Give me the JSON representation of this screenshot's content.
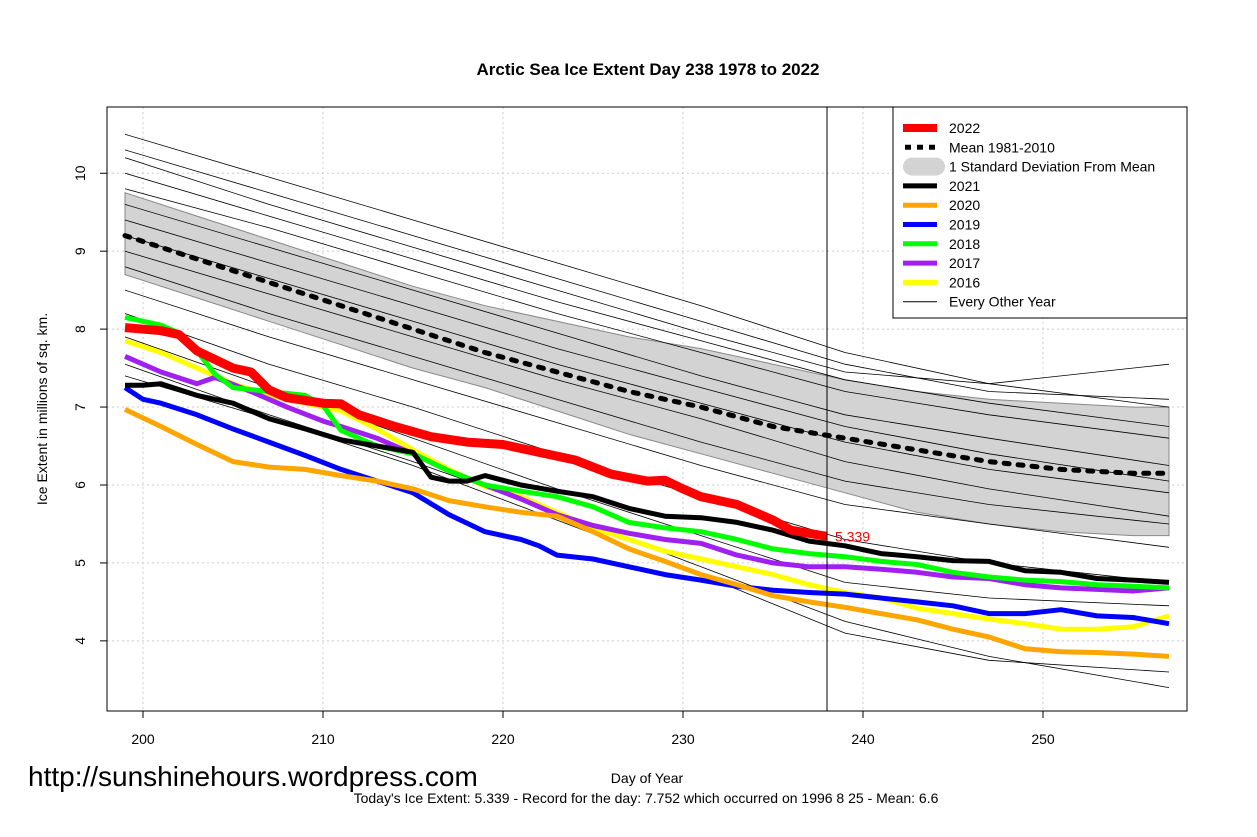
{
  "chart_data": {
    "type": "line",
    "title": "Arctic Sea Ice Extent Day 238 1978 to 2022",
    "xlabel": "Day of Year",
    "ylabel": "Ice Extent in millions of sq. km.",
    "xlim": [
      198,
      258
    ],
    "ylim": [
      3.1,
      10.85
    ],
    "xticks": [
      200,
      210,
      220,
      230,
      240,
      250
    ],
    "yticks": [
      4,
      5,
      6,
      7,
      8,
      9,
      10
    ],
    "grid": true,
    "legend_position": "top-right",
    "current_day": 238,
    "current_value_label": "5.339",
    "watermark": "http://sunshinehours.wordpress.com",
    "footer": "Today's Ice Extent: 5.339  - Record for the day: 7.752 which occurred on 1996 8 25  - Mean: 6.6",
    "legend": [
      {
        "label": "2022",
        "color": "#ff0000",
        "style": "thick"
      },
      {
        "label": "Mean 1981-2010",
        "color": "#000000",
        "style": "dotted"
      },
      {
        "label": "1 Standard Deviation From Mean",
        "color": "#d3d3d3",
        "style": "band"
      },
      {
        "label": "2021",
        "color": "#000000",
        "style": "line"
      },
      {
        "label": "2020",
        "color": "#ffa500",
        "style": "line"
      },
      {
        "label": "2019",
        "color": "#0000ff",
        "style": "line"
      },
      {
        "label": "2018",
        "color": "#00ff00",
        "style": "line"
      },
      {
        "label": "2017",
        "color": "#a020f0",
        "style": "line"
      },
      {
        "label": "2016",
        "color": "#ffff00",
        "style": "line"
      },
      {
        "label": "Every Other Year",
        "color": "#000000",
        "style": "thin"
      }
    ],
    "band": {
      "x": [
        199,
        203,
        207,
        211,
        215,
        219,
        223,
        227,
        231,
        235,
        239,
        243,
        247,
        251,
        255,
        257
      ],
      "upper": [
        9.75,
        9.45,
        9.15,
        8.85,
        8.55,
        8.3,
        8.1,
        7.9,
        7.75,
        7.55,
        7.35,
        7.2,
        7.1,
        7.05,
        7.0,
        7.0
      ],
      "lower": [
        8.7,
        8.4,
        8.1,
        7.8,
        7.5,
        7.25,
        6.95,
        6.65,
        6.4,
        6.15,
        5.9,
        5.65,
        5.5,
        5.4,
        5.35,
        5.35
      ]
    },
    "mean": {
      "x": [
        199,
        203,
        207,
        211,
        215,
        219,
        223,
        227,
        231,
        235,
        239,
        243,
        247,
        251,
        255,
        257
      ],
      "y": [
        9.2,
        8.9,
        8.6,
        8.3,
        8.0,
        7.7,
        7.45,
        7.2,
        7.0,
        6.75,
        6.6,
        6.45,
        6.3,
        6.2,
        6.15,
        6.15
      ]
    },
    "series": [
      {
        "name": "2022",
        "color": "#ff0000",
        "width": 9,
        "x": [
          199,
          201,
          202,
          203,
          205,
          206,
          207,
          208,
          210,
          211,
          212,
          214,
          216,
          218,
          220,
          222,
          224,
          226,
          228,
          229,
          230,
          231,
          233,
          235,
          236,
          238
        ],
        "y": [
          8.02,
          7.98,
          7.93,
          7.72,
          7.5,
          7.45,
          7.22,
          7.12,
          7.05,
          7.04,
          6.9,
          6.75,
          6.62,
          6.55,
          6.52,
          6.42,
          6.32,
          6.14,
          6.05,
          6.06,
          5.95,
          5.85,
          5.75,
          5.55,
          5.42,
          5.34
        ]
      },
      {
        "name": "2021",
        "color": "#000000",
        "width": 5,
        "x": [
          199,
          200,
          201,
          203,
          205,
          207,
          209,
          211,
          213,
          215,
          216,
          217,
          218,
          219,
          221,
          223,
          225,
          227,
          229,
          231,
          233,
          235,
          237,
          239,
          241,
          243,
          245,
          247,
          249,
          251,
          253,
          255,
          257
        ],
        "y": [
          7.28,
          7.28,
          7.3,
          7.15,
          7.05,
          6.85,
          6.72,
          6.58,
          6.5,
          6.42,
          6.1,
          6.05,
          6.05,
          6.12,
          6.0,
          5.92,
          5.85,
          5.7,
          5.6,
          5.58,
          5.52,
          5.42,
          5.28,
          5.22,
          5.12,
          5.08,
          5.03,
          5.02,
          4.9,
          4.88,
          4.8,
          4.78,
          4.75
        ]
      },
      {
        "name": "2020",
        "color": "#ffa500",
        "width": 5,
        "x": [
          199,
          201,
          203,
          205,
          207,
          209,
          211,
          213,
          215,
          217,
          219,
          221,
          223,
          225,
          227,
          229,
          231,
          233,
          235,
          237,
          239,
          241,
          243,
          245,
          247,
          249,
          251,
          253,
          255,
          257
        ],
        "y": [
          6.97,
          6.75,
          6.52,
          6.3,
          6.23,
          6.2,
          6.12,
          6.05,
          5.95,
          5.8,
          5.72,
          5.65,
          5.6,
          5.4,
          5.18,
          5.02,
          4.85,
          4.72,
          4.58,
          4.5,
          4.43,
          4.35,
          4.27,
          4.15,
          4.05,
          3.9,
          3.86,
          3.85,
          3.83,
          3.8
        ]
      },
      {
        "name": "2019",
        "color": "#0000ff",
        "width": 5,
        "x": [
          199,
          200,
          201,
          203,
          205,
          207,
          209,
          211,
          213,
          215,
          217,
          219,
          221,
          222,
          223,
          225,
          227,
          229,
          231,
          233,
          235,
          237,
          239,
          241,
          243,
          245,
          247,
          249,
          251,
          253,
          255,
          257
        ],
        "y": [
          7.25,
          7.1,
          7.05,
          6.9,
          6.72,
          6.55,
          6.38,
          6.2,
          6.05,
          5.9,
          5.62,
          5.4,
          5.3,
          5.22,
          5.1,
          5.05,
          4.95,
          4.85,
          4.78,
          4.7,
          4.65,
          4.62,
          4.6,
          4.55,
          4.5,
          4.45,
          4.35,
          4.35,
          4.4,
          4.32,
          4.3,
          4.22
        ]
      },
      {
        "name": "2018",
        "color": "#00ff00",
        "width": 5,
        "x": [
          199,
          201,
          202,
          203,
          204,
          205,
          207,
          209,
          210,
          211,
          213,
          215,
          217,
          219,
          221,
          223,
          225,
          227,
          229,
          231,
          233,
          235,
          237,
          239,
          241,
          243,
          245,
          247,
          249,
          251,
          253,
          255,
          257
        ],
        "y": [
          8.15,
          8.05,
          7.95,
          7.72,
          7.42,
          7.25,
          7.2,
          7.15,
          7.02,
          6.7,
          6.5,
          6.4,
          6.18,
          6.0,
          5.92,
          5.85,
          5.72,
          5.52,
          5.45,
          5.4,
          5.3,
          5.18,
          5.12,
          5.08,
          5.02,
          4.98,
          4.88,
          4.82,
          4.78,
          4.76,
          4.72,
          4.7,
          4.68
        ]
      },
      {
        "name": "2017",
        "color": "#a020f0",
        "width": 5,
        "x": [
          199,
          201,
          203,
          204,
          206,
          208,
          210,
          211,
          213,
          215,
          217,
          219,
          221,
          223,
          225,
          227,
          229,
          231,
          233,
          235,
          237,
          239,
          241,
          243,
          245,
          247,
          249,
          251,
          253,
          255,
          257
        ],
        "y": [
          7.65,
          7.45,
          7.3,
          7.38,
          7.2,
          7.0,
          6.82,
          6.75,
          6.6,
          6.4,
          6.18,
          6.0,
          5.82,
          5.62,
          5.48,
          5.38,
          5.3,
          5.25,
          5.1,
          5.0,
          4.95,
          4.95,
          4.92,
          4.88,
          4.82,
          4.8,
          4.72,
          4.68,
          4.66,
          4.64,
          4.68
        ]
      },
      {
        "name": "2016",
        "color": "#ffff00",
        "width": 5,
        "x": [
          199,
          201,
          203,
          205,
          207,
          209,
          211,
          213,
          215,
          217,
          219,
          221,
          223,
          225,
          227,
          229,
          231,
          233,
          235,
          237,
          239,
          241,
          243,
          245,
          247,
          249,
          251,
          253,
          255,
          257
        ],
        "y": [
          7.85,
          7.7,
          7.5,
          7.3,
          7.15,
          7.05,
          6.95,
          6.72,
          6.45,
          6.2,
          5.98,
          5.85,
          5.65,
          5.45,
          5.3,
          5.15,
          5.05,
          4.95,
          4.85,
          4.72,
          4.62,
          4.55,
          4.42,
          4.35,
          4.28,
          4.22,
          4.15,
          4.15,
          4.18,
          4.32
        ]
      }
    ],
    "other_years": [
      {
        "x": [
          199,
          207,
          215,
          223,
          231,
          239,
          247,
          257
        ],
        "y": [
          10.5,
          9.95,
          9.4,
          8.85,
          8.3,
          7.7,
          7.3,
          7.0
        ]
      },
      {
        "x": [
          199,
          207,
          215,
          223,
          231,
          239,
          247,
          257
        ],
        "y": [
          10.3,
          9.75,
          9.2,
          8.65,
          8.1,
          7.55,
          7.2,
          7.1
        ]
      },
      {
        "x": [
          199,
          207,
          215,
          223,
          231,
          239,
          247,
          257
        ],
        "y": [
          10.2,
          9.6,
          9.05,
          8.5,
          7.95,
          7.45,
          7.3,
          7.55
        ]
      },
      {
        "x": [
          199,
          207,
          215,
          223,
          231,
          239,
          247,
          257
        ],
        "y": [
          10.0,
          9.45,
          8.9,
          8.35,
          7.85,
          7.35,
          7.05,
          6.75
        ]
      },
      {
        "x": [
          199,
          207,
          215,
          223,
          231,
          239,
          247,
          257
        ],
        "y": [
          9.8,
          9.3,
          8.75,
          8.2,
          7.7,
          7.2,
          6.9,
          6.6
        ]
      },
      {
        "x": [
          199,
          207,
          215,
          223,
          231,
          239,
          247,
          257
        ],
        "y": [
          9.6,
          9.05,
          8.5,
          7.95,
          7.4,
          6.9,
          6.6,
          6.25
        ]
      },
      {
        "x": [
          199,
          207,
          215,
          223,
          231,
          239,
          247,
          257
        ],
        "y": [
          9.4,
          8.85,
          8.3,
          7.75,
          7.25,
          6.75,
          6.4,
          6.05
        ]
      },
      {
        "x": [
          199,
          207,
          215,
          223,
          231,
          239,
          247,
          257
        ],
        "y": [
          9.2,
          8.65,
          8.1,
          7.55,
          7.05,
          6.55,
          6.2,
          5.9
        ]
      },
      {
        "x": [
          199,
          207,
          215,
          223,
          231,
          239,
          247,
          257
        ],
        "y": [
          9.0,
          8.45,
          7.9,
          7.35,
          6.85,
          6.3,
          5.95,
          5.6
        ]
      },
      {
        "x": [
          199,
          207,
          215,
          223,
          231,
          239,
          247,
          257
        ],
        "y": [
          8.8,
          8.2,
          7.65,
          7.1,
          6.55,
          6.05,
          5.75,
          5.5
        ]
      },
      {
        "x": [
          199,
          207,
          215,
          223,
          231,
          239,
          247,
          257
        ],
        "y": [
          8.5,
          7.9,
          7.35,
          6.8,
          6.25,
          5.75,
          5.5,
          5.2
        ]
      },
      {
        "x": [
          199,
          207,
          215,
          223,
          231,
          239,
          247,
          257
        ],
        "y": [
          8.2,
          7.55,
          7.0,
          6.4,
          5.85,
          5.3,
          5.0,
          4.75
        ]
      },
      {
        "x": [
          199,
          207,
          215,
          223,
          231,
          239,
          247,
          257
        ],
        "y": [
          7.9,
          7.25,
          6.6,
          5.95,
          5.35,
          4.75,
          4.55,
          4.45
        ]
      },
      {
        "x": [
          199,
          207,
          215,
          223,
          231,
          239,
          247,
          257
        ],
        "y": [
          7.55,
          6.9,
          6.3,
          5.65,
          4.95,
          4.25,
          3.8,
          3.4
        ]
      },
      {
        "x": [
          199,
          207,
          215,
          223,
          231,
          239,
          247,
          257
        ],
        "y": [
          7.4,
          6.85,
          6.25,
          5.55,
          4.85,
          4.1,
          3.75,
          3.6
        ]
      }
    ]
  }
}
